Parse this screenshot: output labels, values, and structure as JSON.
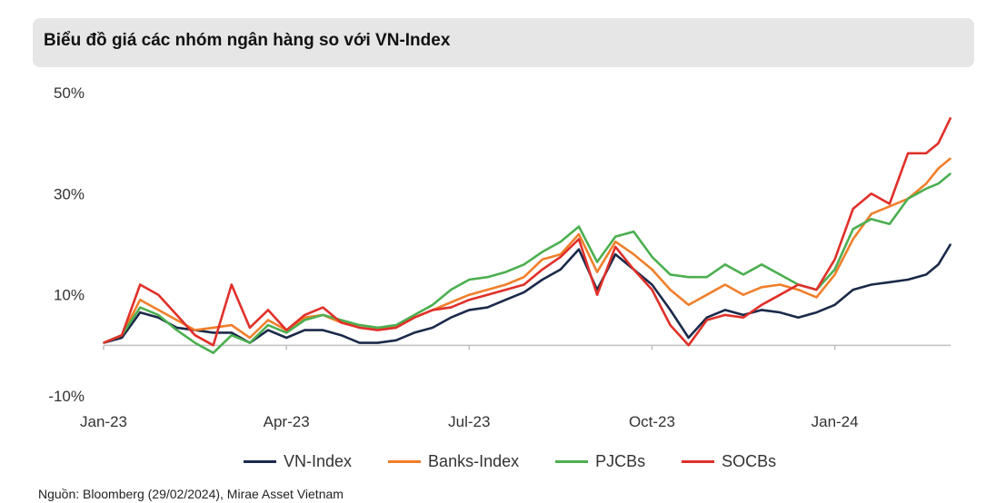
{
  "title": "Biểu đồ giá các nhóm ngân hàng so với VN-Index",
  "source": "Nguồn: Bloomberg (29/02/2024), Mirae Asset Vietnam",
  "chart_data": {
    "type": "line",
    "title": "Biểu đồ giá các nhóm ngân hàng so với VN-Index",
    "xlabel": "",
    "ylabel": "",
    "ylim": [
      -10,
      50
    ],
    "y_ticks": [
      "50%",
      "30%",
      "10%",
      "-10%"
    ],
    "y_tick_values": [
      50,
      30,
      10,
      -10
    ],
    "x_ticks": [
      "Jan-23",
      "Apr-23",
      "Jul-23",
      "Oct-23",
      "Jan-24"
    ],
    "x_tick_positions": [
      0,
      3,
      6,
      9,
      12
    ],
    "xlim": [
      0,
      13.9
    ],
    "grid": false,
    "legend_position": "bottom",
    "series": [
      {
        "name": "VN-Index",
        "color": "#1b2a4a",
        "x": [
          0,
          0.3,
          0.6,
          0.9,
          1.2,
          1.5,
          1.8,
          2.1,
          2.4,
          2.7,
          3.0,
          3.3,
          3.6,
          3.9,
          4.2,
          4.5,
          4.8,
          5.1,
          5.4,
          5.7,
          6.0,
          6.3,
          6.6,
          6.9,
          7.2,
          7.5,
          7.8,
          8.1,
          8.4,
          8.7,
          9.0,
          9.3,
          9.6,
          9.9,
          10.2,
          10.5,
          10.8,
          11.1,
          11.4,
          11.7,
          12.0,
          12.3,
          12.6,
          12.9,
          13.2,
          13.5,
          13.7,
          13.9
        ],
        "y": [
          0.5,
          1.5,
          6.5,
          5.5,
          3.5,
          3,
          2.5,
          2.5,
          0.5,
          3,
          1.5,
          3,
          3,
          2,
          0.5,
          0.5,
          1,
          2.5,
          3.5,
          5.5,
          7,
          7.5,
          9,
          10.5,
          13,
          15,
          19,
          11,
          18,
          15,
          12,
          7,
          1.5,
          5.5,
          7,
          6,
          7,
          6.5,
          5.5,
          6.5,
          8,
          11,
          12,
          12.5,
          13,
          14,
          16,
          20
        ]
      },
      {
        "name": "Banks-Index",
        "color": "#f07f2b",
        "x": [
          0,
          0.3,
          0.6,
          0.9,
          1.2,
          1.5,
          1.8,
          2.1,
          2.4,
          2.7,
          3.0,
          3.3,
          3.6,
          3.9,
          4.2,
          4.5,
          4.8,
          5.1,
          5.4,
          5.7,
          6.0,
          6.3,
          6.6,
          6.9,
          7.2,
          7.5,
          7.8,
          8.1,
          8.4,
          8.7,
          9.0,
          9.3,
          9.6,
          9.9,
          10.2,
          10.5,
          10.8,
          11.1,
          11.4,
          11.7,
          12.0,
          12.3,
          12.6,
          12.9,
          13.2,
          13.5,
          13.7,
          13.9
        ],
        "y": [
          0.5,
          2,
          9,
          7,
          5,
          3,
          3.5,
          4,
          1.5,
          5,
          3,
          5.5,
          6,
          4.5,
          4,
          3.5,
          3.5,
          5.5,
          7,
          8.5,
          10,
          11,
          12,
          13.5,
          17,
          18,
          22,
          14.5,
          20.5,
          18,
          15,
          11,
          8,
          10,
          12,
          10,
          11.5,
          12,
          11,
          9.5,
          14,
          21,
          26,
          27.5,
          29,
          32,
          35,
          37
        ]
      },
      {
        "name": "PJCBs",
        "color": "#4caf50",
        "x": [
          0,
          0.3,
          0.6,
          0.9,
          1.2,
          1.5,
          1.8,
          2.1,
          2.4,
          2.7,
          3.0,
          3.3,
          3.6,
          3.9,
          4.2,
          4.5,
          4.8,
          5.1,
          5.4,
          5.7,
          6.0,
          6.3,
          6.6,
          6.9,
          7.2,
          7.5,
          7.8,
          8.1,
          8.4,
          8.7,
          9.0,
          9.3,
          9.6,
          9.9,
          10.2,
          10.5,
          10.8,
          11.1,
          11.4,
          11.7,
          12.0,
          12.3,
          12.6,
          12.9,
          13.2,
          13.5,
          13.7,
          13.9
        ],
        "y": [
          0.5,
          2,
          7.5,
          6,
          3,
          0.5,
          -1.5,
          2,
          0.5,
          4,
          2.5,
          5,
          6,
          5,
          4,
          3.5,
          4,
          6,
          8,
          11,
          13,
          13.5,
          14.5,
          16,
          18.5,
          20.5,
          23.5,
          16.5,
          21.5,
          22.5,
          17.5,
          14,
          13.5,
          13.5,
          16,
          14,
          16,
          14,
          12,
          11,
          15,
          23,
          25,
          24,
          29,
          31,
          32,
          34
        ]
      },
      {
        "name": "SOCBs",
        "color": "#e0302a",
        "x": [
          0,
          0.3,
          0.6,
          0.9,
          1.2,
          1.5,
          1.8,
          2.1,
          2.4,
          2.7,
          3.0,
          3.3,
          3.6,
          3.9,
          4.2,
          4.5,
          4.8,
          5.1,
          5.4,
          5.7,
          6.0,
          6.3,
          6.6,
          6.9,
          7.2,
          7.5,
          7.8,
          8.1,
          8.4,
          8.7,
          9.0,
          9.3,
          9.6,
          9.9,
          10.2,
          10.5,
          10.8,
          11.1,
          11.4,
          11.7,
          12.0,
          12.3,
          12.6,
          12.9,
          13.2,
          13.5,
          13.7,
          13.9
        ],
        "y": [
          0.5,
          2,
          12,
          10,
          6,
          2,
          0,
          12,
          3.5,
          7,
          3,
          6,
          7.5,
          4.5,
          3.5,
          3,
          3.5,
          5.5,
          7,
          7.5,
          9,
          10,
          11,
          12,
          15,
          17.5,
          21,
          10,
          19.5,
          15,
          11,
          4,
          0,
          5,
          6,
          5.5,
          8,
          10,
          12,
          11,
          17,
          27,
          30,
          28,
          38,
          38,
          40,
          45
        ]
      }
    ]
  }
}
